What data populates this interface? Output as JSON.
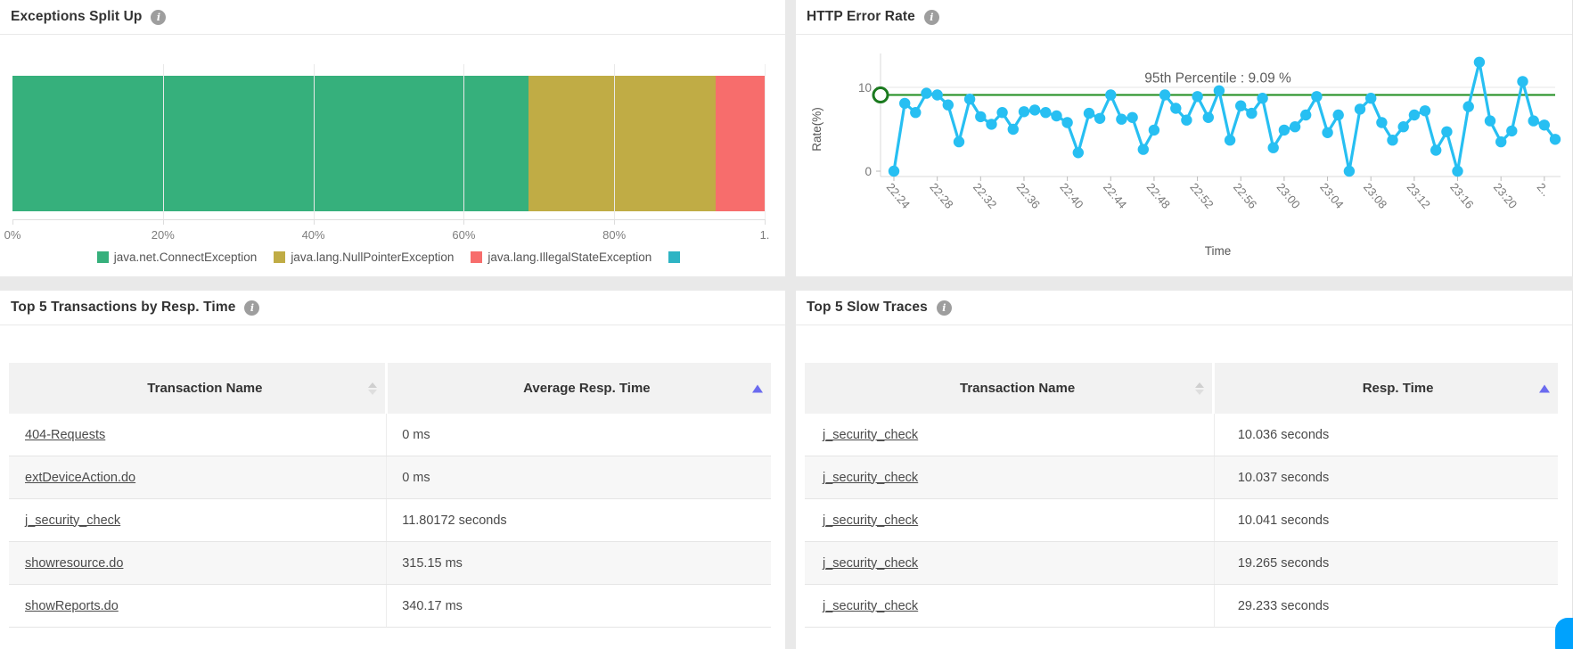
{
  "panels": {
    "top_transactions": {
      "title": "Top 5 Transactions by Resp. Time",
      "columns": [
        "Transaction Name",
        "Average Resp. Time"
      ],
      "rows": [
        [
          "404-Requests",
          "0 ms"
        ],
        [
          "extDeviceAction.do",
          "0 ms"
        ],
        [
          "j_security_check",
          "11.80172 seconds"
        ],
        [
          "showresource.do",
          "315.15 ms"
        ],
        [
          "showReports.do",
          "340.17 ms"
        ]
      ]
    },
    "slow_traces": {
      "title": "Top 5 Slow Traces",
      "columns": [
        "Transaction Name",
        "Resp. Time"
      ],
      "rows": [
        [
          "j_security_check",
          "10.036 seconds"
        ],
        [
          "j_security_check",
          "10.037 seconds"
        ],
        [
          "j_security_check",
          "10.041 seconds"
        ],
        [
          "j_security_check",
          "19.265 seconds"
        ],
        [
          "j_security_check",
          "29.233 seconds"
        ]
      ]
    }
  },
  "chart_data": [
    {
      "type": "bar",
      "subtype": "horizontal-stacked",
      "title": "Exceptions Split Up",
      "x_ticks": [
        {
          "label": "0%",
          "pct": 0
        },
        {
          "label": "20%",
          "pct": 20
        },
        {
          "label": "40%",
          "pct": 40
        },
        {
          "label": "60%",
          "pct": 60
        },
        {
          "label": "80%",
          "pct": 80
        },
        {
          "label": "1.",
          "pct": 100
        }
      ],
      "xlim": [
        0,
        100
      ],
      "grid": true,
      "legend_position": "bottom",
      "segments": [
        {
          "label": "java.net.ConnectException",
          "pct": 68.6,
          "color": "#36b07c"
        },
        {
          "label": "java.lang.NullPointerException",
          "pct": 24.9,
          "color": "#c0ac45"
        },
        {
          "label": "java.lang.IllegalStateException",
          "pct": 6.5,
          "color": "#f76d6c"
        },
        {
          "label": "",
          "pct": 0,
          "color": "#2eb4c4"
        }
      ]
    },
    {
      "type": "line",
      "title": "HTTP Error Rate",
      "xlabel": "Time",
      "ylabel": "Rate(%)",
      "y_ticks": [
        0,
        10
      ],
      "ylim": [
        0,
        14.5
      ],
      "grid": true,
      "line_color": "#27bff2",
      "threshold": {
        "label": "95th Percentile : 9.09 %",
        "value": 9.09,
        "color": "#1e8c1e"
      },
      "x_labels": [
        "22:24",
        "22:28",
        "22:32",
        "22:36",
        "22:40",
        "22:44",
        "22:48",
        "22:52",
        "22:56",
        "23:00",
        "23:04",
        "23:08",
        "23:12",
        "23:16",
        "23:20",
        "2.."
      ],
      "label_every_n_points": 4,
      "values": [
        0,
        8.1,
        7.0,
        9.3,
        9.1,
        7.9,
        3.5,
        8.6,
        6.5,
        5.6,
        7.0,
        5.0,
        7.1,
        7.3,
        7.0,
        6.6,
        5.8,
        2.2,
        6.9,
        6.3,
        9.1,
        6.2,
        6.4,
        2.6,
        4.9,
        9.1,
        7.5,
        6.1,
        8.9,
        6.4,
        9.6,
        3.7,
        7.8,
        6.9,
        8.7,
        2.8,
        4.9,
        5.3,
        6.7,
        8.9,
        4.6,
        6.7,
        0,
        7.4,
        8.7,
        5.8,
        3.7,
        5.3,
        6.7,
        7.2,
        2.5,
        4.7,
        0,
        7.7,
        13.0,
        6.0,
        3.5,
        4.8,
        10.7,
        6.0,
        5.5,
        3.8
      ]
    }
  ],
  "misc": {
    "info_icon_glyph": "i"
  }
}
